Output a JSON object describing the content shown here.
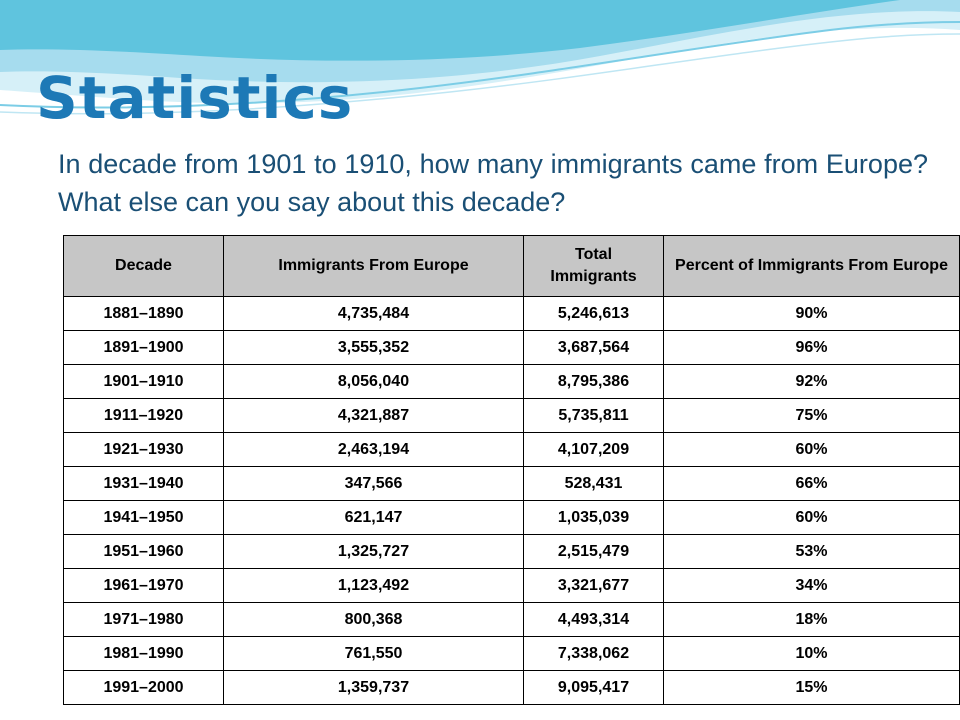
{
  "slide": {
    "title": "Statistics",
    "question": "In decade from 1901 to 1910, how many immigrants came from Europe? What else can you say about this decade?"
  },
  "theme": {
    "title_color": "#1d79b6",
    "text_color": "#1a4f75",
    "header_fill": "#c6c6c6",
    "wave_colors": [
      "#5fc4de",
      "#a6dcee",
      "#d6f0f8"
    ]
  },
  "table": {
    "headers": {
      "decade": "Decade",
      "europe": "Immigrants From Europe",
      "total": "Total Immigrants",
      "percent": "Percent of Immigrants From Europe"
    },
    "rows": [
      {
        "decade": "1881–1890",
        "europe": "4,735,484",
        "total": "5,246,613",
        "percent": "90%"
      },
      {
        "decade": "1891–1900",
        "europe": "3,555,352",
        "total": "3,687,564",
        "percent": "96%"
      },
      {
        "decade": "1901–1910",
        "europe": "8,056,040",
        "total": "8,795,386",
        "percent": "92%"
      },
      {
        "decade": "1911–1920",
        "europe": "4,321,887",
        "total": "5,735,811",
        "percent": "75%"
      },
      {
        "decade": "1921–1930",
        "europe": "2,463,194",
        "total": "4,107,209",
        "percent": "60%"
      },
      {
        "decade": "1931–1940",
        "europe": "347,566",
        "total": "528,431",
        "percent": "66%"
      },
      {
        "decade": "1941–1950",
        "europe": "621,147",
        "total": "1,035,039",
        "percent": "60%"
      },
      {
        "decade": "1951–1960",
        "europe": "1,325,727",
        "total": "2,515,479",
        "percent": "53%"
      },
      {
        "decade": "1961–1970",
        "europe": "1,123,492",
        "total": "3,321,677",
        "percent": "34%"
      },
      {
        "decade": "1971–1980",
        "europe": "800,368",
        "total": "4,493,314",
        "percent": "18%"
      },
      {
        "decade": "1981–1990",
        "europe": "761,550",
        "total": "7,338,062",
        "percent": "10%"
      },
      {
        "decade": "1991–2000",
        "europe": "1,359,737",
        "total": "9,095,417",
        "percent": "15%"
      }
    ]
  }
}
